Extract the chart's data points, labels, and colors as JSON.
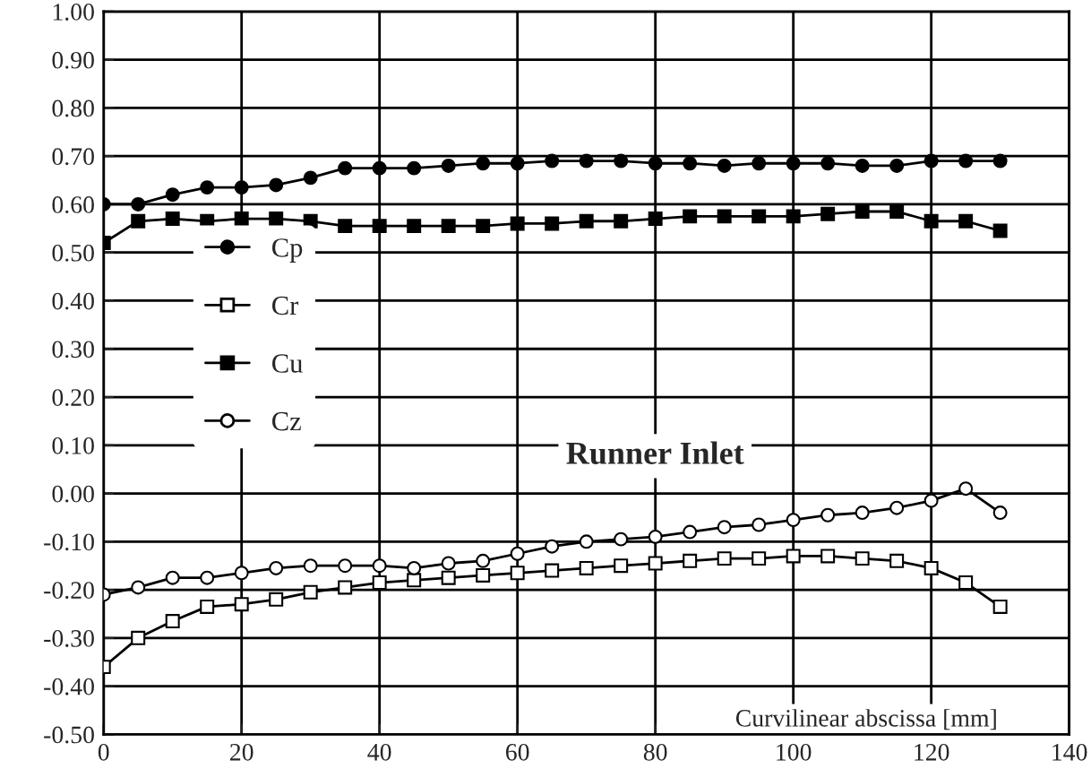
{
  "chart_data": {
    "type": "line",
    "xlabel": "Curvilinear abscissa [mm]",
    "annotations": [
      "Runner Inlet"
    ],
    "x": [
      0,
      5,
      10,
      15,
      20,
      25,
      30,
      35,
      40,
      45,
      50,
      55,
      60,
      65,
      70,
      75,
      80,
      85,
      90,
      95,
      100,
      105,
      110,
      115,
      120,
      125,
      130
    ],
    "series": [
      {
        "name": "Cp",
        "color": "#000000",
        "marker": "circle",
        "values": [
          0.6,
          0.6,
          0.62,
          0.635,
          0.635,
          0.64,
          0.655,
          0.675,
          0.675,
          0.675,
          0.68,
          0.685,
          0.685,
          0.69,
          0.69,
          0.69,
          0.685,
          0.685,
          0.68,
          0.685,
          0.685,
          0.685,
          0.68,
          0.68,
          0.69,
          0.69,
          0.69
        ]
      },
      {
        "name": "Cr",
        "color": "#000000",
        "marker": "square",
        "values": [
          -0.36,
          -0.3,
          -0.265,
          -0.235,
          -0.23,
          -0.22,
          -0.205,
          -0.195,
          -0.185,
          -0.18,
          -0.175,
          -0.17,
          -0.165,
          -0.16,
          -0.155,
          -0.15,
          -0.145,
          -0.14,
          -0.135,
          -0.135,
          -0.13,
          -0.13,
          -0.135,
          -0.14,
          -0.155,
          -0.185,
          -0.235
        ]
      },
      {
        "name": "Cu",
        "color": "#000000",
        "marker": "square",
        "values": [
          0.52,
          0.565,
          0.57,
          0.565,
          0.57,
          0.57,
          0.565,
          0.555,
          0.555,
          0.555,
          0.555,
          0.555,
          0.56,
          0.56,
          0.565,
          0.565,
          0.57,
          0.575,
          0.575,
          0.575,
          0.575,
          0.58,
          0.585,
          0.585,
          0.565,
          0.565,
          0.545
        ]
      },
      {
        "name": "Cz",
        "color": "#000000",
        "marker": "circle",
        "values": [
          -0.21,
          -0.195,
          -0.175,
          -0.175,
          -0.165,
          -0.155,
          -0.15,
          -0.15,
          -0.15,
          -0.155,
          -0.145,
          -0.14,
          -0.125,
          -0.11,
          -0.1,
          -0.095,
          -0.09,
          -0.08,
          -0.07,
          -0.065,
          -0.055,
          -0.045,
          -0.04,
          -0.03,
          -0.015,
          0.01,
          -0.04
        ]
      }
    ],
    "xlim": [
      0,
      140
    ],
    "xticks": [
      0,
      20,
      40,
      60,
      80,
      100,
      120,
      140
    ],
    "ylim": [
      -0.5,
      1.0
    ],
    "yticks": [
      {
        "value": -0.5,
        "label": "-0.50"
      },
      {
        "value": -0.4,
        "label": "-0.40"
      },
      {
        "value": -0.3,
        "label": "-0.30"
      },
      {
        "value": -0.2,
        "label": "-0.20"
      },
      {
        "value": -0.1,
        "label": "-0.10"
      },
      {
        "value": 0,
        "label": "0.00"
      },
      {
        "value": 0.1,
        "label": "0.10"
      },
      {
        "value": 0.2,
        "label": "0.20"
      },
      {
        "value": 0.3,
        "label": "0.30"
      },
      {
        "value": 0.4,
        "label": "0.40"
      },
      {
        "value": 0.5,
        "label": "0.50"
      },
      {
        "value": 0.6,
        "label": "0.60"
      },
      {
        "value": 0.7,
        "label": "0.70"
      },
      {
        "value": 0.8,
        "label": "0.80"
      },
      {
        "value": 0.9,
        "label": "0.90"
      },
      {
        "value": 1.0,
        "label": "1.00"
      }
    ],
    "grid": true,
    "legend": "center left",
    "line_style": "solid"
  }
}
